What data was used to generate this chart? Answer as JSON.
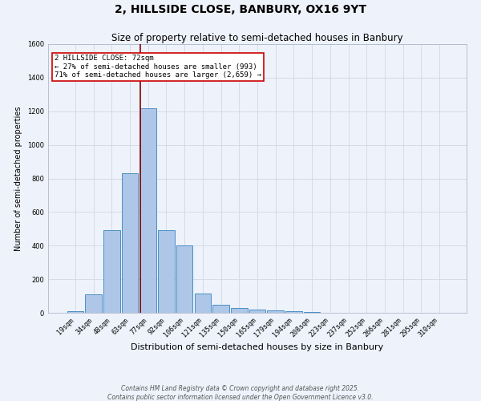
{
  "title": "2, HILLSIDE CLOSE, BANBURY, OX16 9YT",
  "subtitle": "Size of property relative to semi-detached houses in Banbury",
  "xlabel": "Distribution of semi-detached houses by size in Banbury",
  "ylabel": "Number of semi-detached properties",
  "bar_labels": [
    "19sqm",
    "34sqm",
    "48sqm",
    "63sqm",
    "77sqm",
    "92sqm",
    "106sqm",
    "121sqm",
    "135sqm",
    "150sqm",
    "165sqm",
    "179sqm",
    "194sqm",
    "208sqm",
    "223sqm",
    "237sqm",
    "252sqm",
    "266sqm",
    "281sqm",
    "295sqm",
    "310sqm"
  ],
  "bar_values": [
    10,
    110,
    490,
    830,
    1220,
    490,
    400,
    115,
    50,
    30,
    20,
    12,
    10,
    5,
    0,
    0,
    0,
    0,
    0,
    0,
    0
  ],
  "bar_color": "#aec6e8",
  "bar_edge_color": "#4a90c4",
  "grid_color": "#d0d8e8",
  "background_color": "#eef2fa",
  "vline_color": "#8b0000",
  "annotation_title": "2 HILLSIDE CLOSE: 72sqm",
  "annotation_line1": "← 27% of semi-detached houses are smaller (993)",
  "annotation_line2": "71% of semi-detached houses are larger (2,659) →",
  "annotation_box_color": "#ffffff",
  "annotation_edge_color": "#cc0000",
  "footer_line1": "Contains HM Land Registry data © Crown copyright and database right 2025.",
  "footer_line2": "Contains public sector information licensed under the Open Government Licence v3.0.",
  "ylim": [
    0,
    1600
  ],
  "yticks": [
    0,
    200,
    400,
    600,
    800,
    1000,
    1200,
    1400,
    1600
  ],
  "title_fontsize": 10,
  "subtitle_fontsize": 8.5,
  "xlabel_fontsize": 8,
  "ylabel_fontsize": 7,
  "tick_fontsize": 6,
  "footer_fontsize": 5.5,
  "annotation_fontsize": 6.5
}
